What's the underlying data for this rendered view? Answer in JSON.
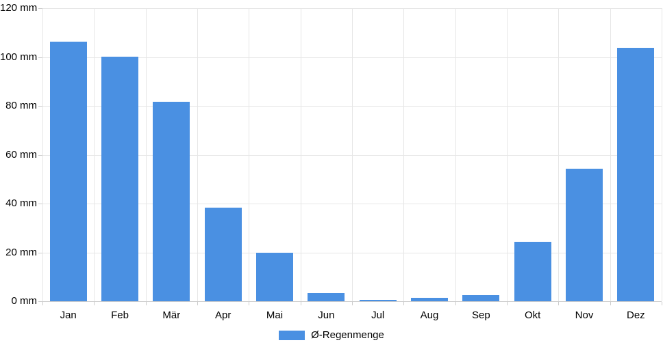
{
  "chart_data": {
    "type": "bar",
    "title": "",
    "categories": [
      "Jan",
      "Feb",
      "Mär",
      "Apr",
      "Mai",
      "Jun",
      "Jul",
      "Aug",
      "Sep",
      "Okt",
      "Nov",
      "Dez"
    ],
    "series": [
      {
        "name": "Ø-Regenmenge",
        "color": "#4a90e2",
        "values": [
          106.3,
          100.2,
          81.6,
          38.4,
          19.8,
          3.5,
          0.7,
          1.3,
          2.6,
          24.3,
          54.3,
          103.8
        ]
      }
    ],
    "xlabel": "",
    "ylabel": "",
    "unit": "mm",
    "ylim": [
      0,
      120
    ],
    "ytick_step": 20,
    "ytick_labels": [
      "0 mm",
      "20 mm",
      "40 mm",
      "60 mm",
      "80 mm",
      "100 mm",
      "120 mm"
    ],
    "grid": true,
    "legend_position": "bottom"
  },
  "colors": {
    "bar": "#4a90e2",
    "gridline": "#e6e6e6",
    "axis": "#cccccc",
    "text": "#000000",
    "background": "#ffffff"
  }
}
